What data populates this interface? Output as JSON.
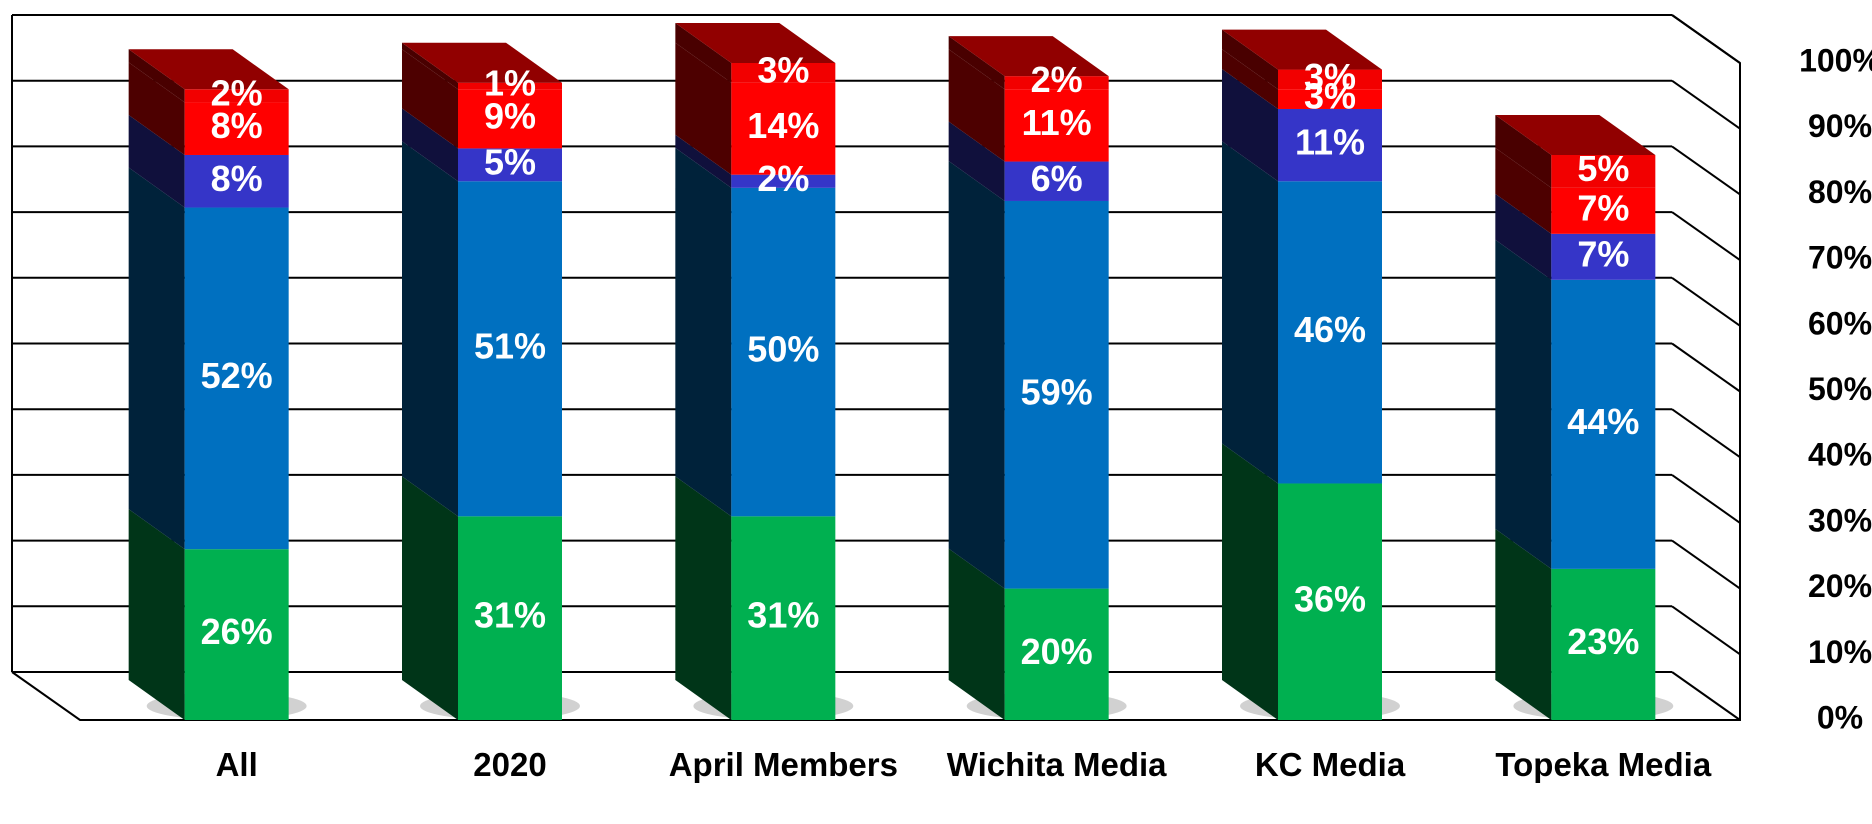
{
  "chart_data": {
    "type": "bar3d_stacked",
    "categories": [
      "All",
      "2020",
      "April Members",
      "Wichita Media",
      "KC Media",
      "Topeka Media"
    ],
    "series": [
      {
        "color": "#00b050",
        "values": [
          26,
          31,
          31,
          20,
          36,
          23
        ],
        "value_labels": [
          "26%",
          "31%",
          "31%",
          "20%",
          "36%",
          "23%"
        ]
      },
      {
        "color": "#0070c0",
        "values": [
          52,
          51,
          50,
          59,
          46,
          44
        ],
        "value_labels": [
          "52%",
          "51%",
          "50%",
          "59%",
          "46%",
          "44%"
        ]
      },
      {
        "color": "#3535c8",
        "values": [
          8,
          5,
          2,
          6,
          11,
          7
        ],
        "value_labels": [
          "8%",
          "5%",
          "2%",
          "6%",
          "11%",
          "7%"
        ]
      },
      {
        "color": "#ff0000",
        "values": [
          8,
          9,
          14,
          11,
          3,
          7
        ],
        "value_labels": [
          "8%",
          "9%",
          "14%",
          "11%",
          "3%",
          "7%"
        ]
      },
      {
        "color": "#f20000",
        "values": [
          2,
          1,
          3,
          2,
          3,
          5
        ],
        "value_labels": [
          "2%",
          "1%",
          "3%",
          "2%",
          "3%",
          "5%"
        ]
      }
    ],
    "ylim": [
      0,
      100
    ],
    "yticks": [
      {
        "value": 0,
        "label": "0%"
      },
      {
        "value": 10,
        "label": "10%"
      },
      {
        "value": 20,
        "label": "20%"
      },
      {
        "value": 30,
        "label": "30%"
      },
      {
        "value": 40,
        "label": "40%"
      },
      {
        "value": 50,
        "label": "50%"
      },
      {
        "value": 60,
        "label": "60%"
      },
      {
        "value": 70,
        "label": "70%"
      },
      {
        "value": 80,
        "label": "80%"
      },
      {
        "value": 90,
        "label": "90%"
      },
      {
        "value": 100,
        "label": "100%"
      }
    ],
    "grid": true
  }
}
